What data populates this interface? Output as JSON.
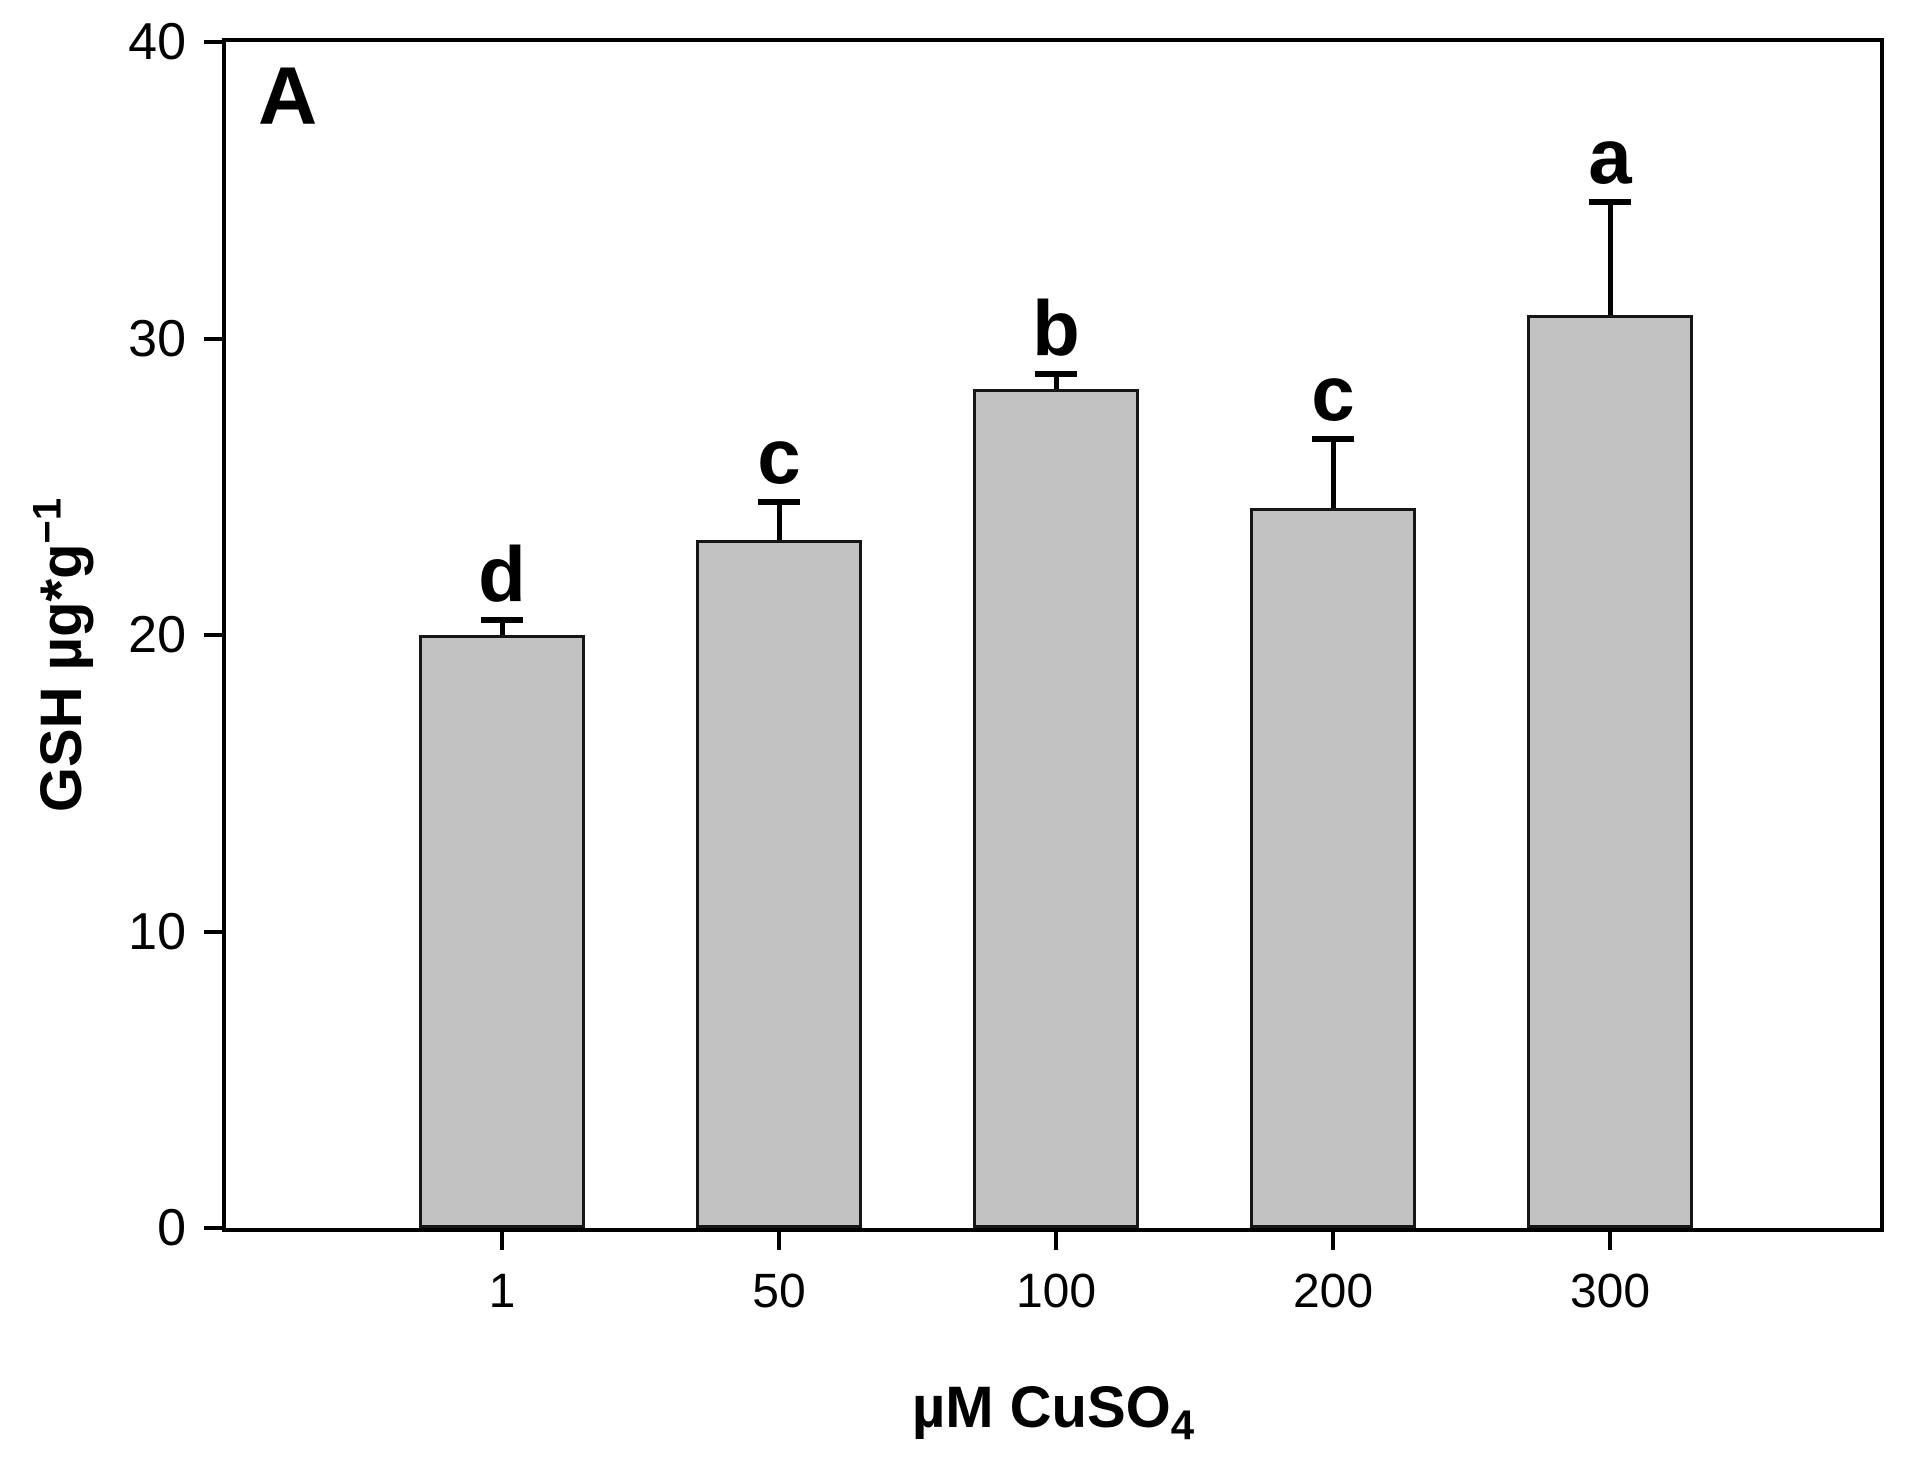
{
  "panel_label": "A",
  "y_axis": {
    "title_main": "GSH µg*g",
    "title_superscript": "−1",
    "tick_labels": [
      "0",
      "10",
      "20",
      "30",
      "40"
    ]
  },
  "x_axis": {
    "title_main": "µM CuSO",
    "title_subscript": "4",
    "tick_labels": [
      "1",
      "50",
      "100",
      "200",
      "300"
    ]
  },
  "chart_data": {
    "type": "bar",
    "categories": [
      "1",
      "50",
      "100",
      "200",
      "300"
    ],
    "values": [
      20.0,
      23.2,
      28.3,
      24.3,
      30.8
    ],
    "error_plus": [
      0.5,
      1.3,
      0.5,
      2.3,
      3.8
    ],
    "significance_letters": [
      "d",
      "c",
      "b",
      "c",
      "a"
    ],
    "title": "",
    "xlabel": "µM CuSO4",
    "ylabel": "GSH µg*g−1",
    "ylim": [
      0,
      40
    ],
    "yticks": [
      0,
      10,
      20,
      30,
      40
    ],
    "grid": false,
    "legend_position": "none",
    "bar_color": "#c2c2c2",
    "bar_border_color": "#161616",
    "axis_color": "#000000",
    "background_color": "#ffffff"
  }
}
